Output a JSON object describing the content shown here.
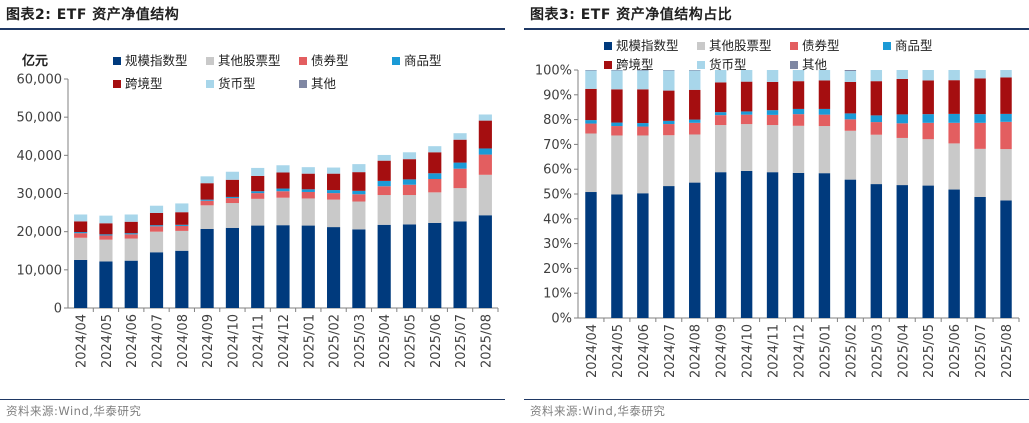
{
  "panels": {
    "left": {
      "title": "图表2:  ETF 资产净值结构",
      "source": "资料来源:Wind,华泰研究"
    },
    "right": {
      "title": "图表3:  ETF 资产净值结构占比",
      "source": "资料来源:Wind,华泰研究"
    }
  },
  "colors": {
    "规模指数型": "#003a7d",
    "其他股票型": "#c9c9c9",
    "债券型": "#e35e60",
    "商品型": "#1b9ad6",
    "跨境型": "#a50e10",
    "货币型": "#a8d6ea",
    "其他": "#7f87a3"
  },
  "chart_data": [
    {
      "type": "bar",
      "stacked": true,
      "title": "ETF 资产净值结构",
      "ylabel": "亿元",
      "ylim": [
        0,
        60000
      ],
      "yticks": [
        0,
        10000,
        20000,
        30000,
        40000,
        50000,
        60000
      ],
      "ytick_labels": [
        "0",
        "10,000",
        "20,000",
        "30,000",
        "40,000",
        "50,000",
        "60,000"
      ],
      "grid": false,
      "legend": "top",
      "categories": [
        "2024/04",
        "2024/05",
        "2024/06",
        "2024/07",
        "2024/08",
        "2024/09",
        "2024/10",
        "2024/11",
        "2024/12",
        "2025/01",
        "2025/02",
        "2025/03",
        "2025/04",
        "2025/05",
        "2025/06",
        "2025/07",
        "2025/08"
      ],
      "series": [
        {
          "name": "规模指数型",
          "values": [
            12600,
            12200,
            12400,
            14600,
            15000,
            20700,
            21000,
            21600,
            21700,
            21600,
            21200,
            20600,
            21800,
            21900,
            22300,
            22700,
            24300
          ]
        },
        {
          "name": "其他股票型",
          "values": [
            5800,
            5700,
            5800,
            5400,
            5200,
            6200,
            6500,
            7000,
            7200,
            7100,
            7200,
            7300,
            7800,
            7700,
            8000,
            8700,
            10600
          ]
        },
        {
          "name": "债券型",
          "values": [
            1200,
            1100,
            1100,
            1400,
            1300,
            1200,
            1300,
            1500,
            1700,
            1700,
            1700,
            1900,
            2300,
            2700,
            3500,
            5100,
            5300
          ]
        },
        {
          "name": "商品型",
          "values": [
            300,
            300,
            300,
            300,
            300,
            300,
            300,
            500,
            700,
            700,
            800,
            900,
            1400,
            1400,
            1500,
            1600,
            1600
          ]
        },
        {
          "name": "跨境型",
          "values": [
            2800,
            2900,
            3000,
            3200,
            3300,
            4300,
            4500,
            4000,
            4200,
            4100,
            4300,
            4900,
            5300,
            5300,
            5500,
            6000,
            7300
          ]
        },
        {
          "name": "货币型",
          "values": [
            1800,
            2000,
            1900,
            1900,
            2300,
            1800,
            2100,
            2100,
            1900,
            1700,
            1600,
            2100,
            1500,
            1800,
            1600,
            1700,
            1600
          ]
        },
        {
          "name": "其他",
          "values": [
            0,
            0,
            0,
            0,
            0,
            0,
            0,
            0,
            0,
            0,
            0,
            0,
            0,
            0,
            0,
            0,
            0
          ]
        }
      ]
    },
    {
      "type": "bar",
      "stacked": true,
      "title": "ETF 资产净值结构占比",
      "ylim": [
        0,
        100
      ],
      "yticks": [
        0,
        10,
        20,
        30,
        40,
        50,
        60,
        70,
        80,
        90,
        100
      ],
      "ytick_labels": [
        "0%",
        "10%",
        "20%",
        "30%",
        "40%",
        "50%",
        "60%",
        "70%",
        "80%",
        "90%",
        "100%"
      ],
      "grid": false,
      "legend": "top",
      "categories": [
        "2024/04",
        "2024/05",
        "2024/06",
        "2024/07",
        "2024/08",
        "2024/09",
        "2024/10",
        "2024/11",
        "2024/12",
        "2025/01",
        "2025/02",
        "2025/03",
        "2025/04",
        "2025/05",
        "2025/06",
        "2025/07",
        "2025/08"
      ],
      "series": [
        {
          "name": "规模指数型",
          "values": [
            50.8,
            49.8,
            50.3,
            53.2,
            54.6,
            58.8,
            59.3,
            58.8,
            58.5,
            58.4,
            55.8,
            54.0,
            53.6,
            53.4,
            51.8,
            48.8,
            47.4
          ]
        },
        {
          "name": "其他股票型",
          "values": [
            23.6,
            23.8,
            23.3,
            20.5,
            19.4,
            19.0,
            18.9,
            19.0,
            19.0,
            19.0,
            19.7,
            19.9,
            19.0,
            18.7,
            18.6,
            19.4,
            20.7
          ]
        },
        {
          "name": "债券型",
          "values": [
            4.0,
            3.8,
            3.6,
            4.5,
            4.7,
            4.0,
            3.8,
            4.1,
            4.7,
            4.6,
            4.6,
            5.1,
            5.9,
            6.6,
            8.3,
            10.5,
            11.0
          ]
        },
        {
          "name": "商品型",
          "values": [
            1.4,
            1.4,
            1.4,
            1.3,
            1.3,
            1.2,
            1.3,
            1.9,
            2.1,
            2.3,
            2.4,
            2.7,
            3.6,
            3.5,
            3.6,
            3.5,
            3.2
          ]
        },
        {
          "name": "跨境型",
          "values": [
            12.6,
            13.4,
            13.6,
            12.2,
            12.0,
            12.0,
            12.0,
            11.4,
            11.2,
            11.5,
            12.7,
            13.8,
            14.3,
            13.6,
            13.6,
            14.4,
            14.7
          ]
        },
        {
          "name": "货币型",
          "values": [
            7.4,
            7.6,
            7.6,
            8.1,
            7.8,
            5.0,
            4.7,
            4.8,
            4.5,
            4.2,
            4.4,
            4.5,
            3.6,
            4.2,
            4.1,
            3.4,
            3.0
          ]
        },
        {
          "name": "其他",
          "values": [
            0.2,
            0.2,
            0.2,
            0.2,
            0.2,
            0,
            0,
            0,
            0,
            0,
            0.4,
            0,
            0,
            0,
            0,
            0,
            0
          ]
        }
      ]
    }
  ]
}
